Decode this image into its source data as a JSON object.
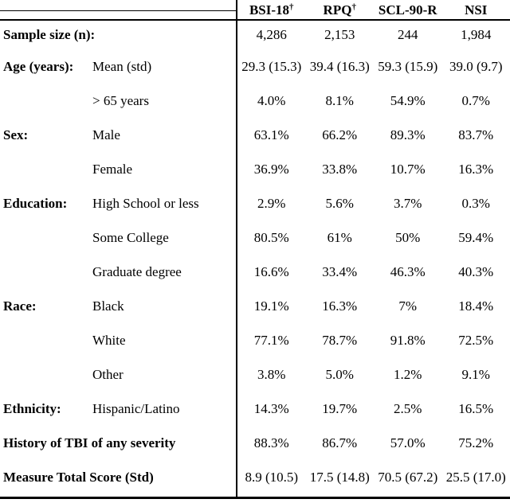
{
  "colors": {
    "text": "#000000",
    "background": "#ffffff",
    "rules": "#000000"
  },
  "table": {
    "header": {
      "columns": [
        {
          "label": "BSI-18",
          "sup": "†"
        },
        {
          "label": "RPQ",
          "sup": "†"
        },
        {
          "label": "SCL-90-R",
          "sup": ""
        },
        {
          "label": "NSI",
          "sup": ""
        }
      ]
    },
    "rows": [
      {
        "category": "Sample size (n):",
        "sub": "",
        "span": true,
        "values": [
          "4,286",
          "2,153",
          "244",
          "1,984"
        ]
      },
      {
        "category": "Age (years):",
        "sub": "Mean (std)",
        "span": false,
        "values": [
          "29.3 (15.3)",
          "39.4 (16.3)",
          "59.3 (15.9)",
          "39.0 (9.7)"
        ]
      },
      {
        "category": "",
        "sub": "> 65 years",
        "span": false,
        "values": [
          "4.0%",
          "8.1%",
          "54.9%",
          "0.7%"
        ]
      },
      {
        "category": "Sex:",
        "sub": "Male",
        "span": false,
        "values": [
          "63.1%",
          "66.2%",
          "89.3%",
          "83.7%"
        ]
      },
      {
        "category": "",
        "sub": "Female",
        "span": false,
        "values": [
          "36.9%",
          "33.8%",
          "10.7%",
          "16.3%"
        ]
      },
      {
        "category": "Education:",
        "sub": "High School or less",
        "span": false,
        "values": [
          "2.9%",
          "5.6%",
          "3.7%",
          "0.3%"
        ]
      },
      {
        "category": "",
        "sub": "Some College",
        "span": false,
        "values": [
          "80.5%",
          "61%",
          "50%",
          "59.4%"
        ]
      },
      {
        "category": "",
        "sub": "Graduate degree",
        "span": false,
        "values": [
          "16.6%",
          "33.4%",
          "46.3%",
          "40.3%"
        ]
      },
      {
        "category": "Race:",
        "sub": "Black",
        "span": false,
        "values": [
          "19.1%",
          "16.3%",
          "7%",
          "18.4%"
        ]
      },
      {
        "category": "",
        "sub": "White",
        "span": false,
        "values": [
          "77.1%",
          "78.7%",
          "91.8%",
          "72.5%"
        ]
      },
      {
        "category": "",
        "sub": "Other",
        "span": false,
        "values": [
          "3.8%",
          "5.0%",
          "1.2%",
          "9.1%"
        ]
      },
      {
        "category": "Ethnicity:",
        "sub": "Hispanic/Latino",
        "span": false,
        "values": [
          "14.3%",
          "19.7%",
          "2.5%",
          "16.5%"
        ]
      },
      {
        "category": "History of TBI of any severity",
        "sub": "",
        "span": true,
        "values": [
          "88.3%",
          "86.7%",
          "57.0%",
          "75.2%"
        ]
      },
      {
        "category": "Measure Total Score (Std)",
        "sub": "",
        "span": true,
        "values": [
          "8.9 (10.5)",
          "17.5 (14.8)",
          "70.5 (67.2)",
          "25.5 (17.0)"
        ]
      }
    ]
  }
}
